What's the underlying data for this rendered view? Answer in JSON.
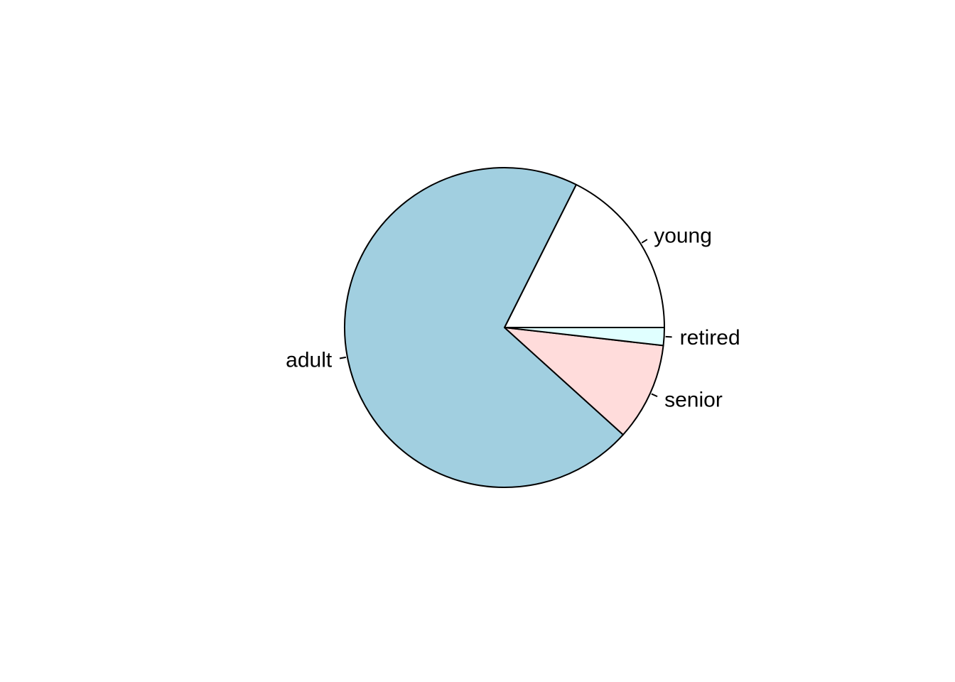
{
  "chart_data": {
    "type": "pie",
    "title": "",
    "start_angle_deg": 0,
    "direction": "counterclockwise",
    "slices": [
      {
        "label": "young",
        "value": 17.6,
        "color": "#ffffff"
      },
      {
        "label": "adult",
        "value": 70.7,
        "color": "#a1cfe0"
      },
      {
        "label": "senior",
        "value": 9.9,
        "color": "#ffdcdb"
      },
      {
        "label": "retired",
        "value": 1.8,
        "color": "#e0ffff"
      }
    ]
  }
}
